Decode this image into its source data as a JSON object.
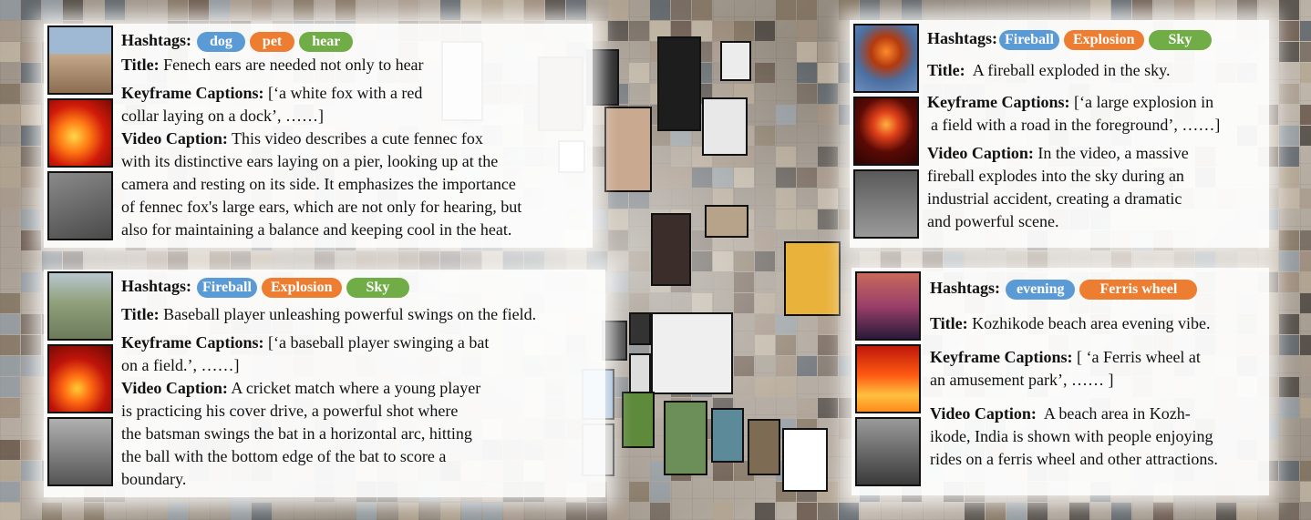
{
  "palette": {
    "tag_blue": "#5b9bd5",
    "tag_orange": "#ed7d31",
    "tag_green": "#70ad47"
  },
  "panels": [
    {
      "hashtags_label": "Hashtags:",
      "hashtags": [
        "dog",
        "pet",
        "hear"
      ],
      "title_label": "Title:",
      "title_text": "Fenech ears are needed not only to hear",
      "keyframe_label": "Keyframe Captions:",
      "keyframe_lines": [
        "[‘a white fox with a red",
        "collar laying on a dock’, ……]"
      ],
      "video_label": "Video Caption:",
      "video_lines": [
        "This video describes a cute fennec fox",
        "with its distinctive ears laying on a pier, looking up at the",
        "camera and resting on its side. It emphasizes the importance",
        "of fennec fox's large ears, which are not only for hearing, but",
        "also for maintaining a balance and keeping cool in the heat."
      ]
    },
    {
      "hashtags_label": "Hashtags:",
      "hashtags": [
        "Fireball",
        "Explosion",
        "Sky"
      ],
      "title_label": "Title:",
      "title_text": "A fireball exploded in the sky.",
      "keyframe_label": "Keyframe Captions:",
      "keyframe_lines": [
        "[‘a large explosion in",
        "a field with a road in the foreground’, ……]"
      ],
      "video_label": "Video Caption:",
      "video_lines": [
        "In the video, a massive",
        "fireball explodes into the sky during an",
        "industrial accident, creating a dramatic",
        "and powerful scene."
      ]
    },
    {
      "hashtags_label": "Hashtags:",
      "hashtags": [
        "Fireball",
        "Explosion",
        "Sky"
      ],
      "title_label": "Title:",
      "title_text": "Baseball player unleashing powerful swings on the field.",
      "keyframe_label": "Keyframe Captions:",
      "keyframe_lines": [
        "[‘a baseball player swinging a bat",
        "on a field.’, ……]"
      ],
      "video_label": "Video Caption:",
      "video_lines": [
        "A cricket match where a young player",
        "is practicing his cover drive, a powerful shot where",
        "the batsman swings the bat in a horizontal arc, hitting",
        "the ball with the bottom edge of the bat to score a",
        "boundary."
      ]
    },
    {
      "hashtags_label": "Hashtags:",
      "hashtags": [
        "evening",
        "Ferris wheel"
      ],
      "title_label": "Title:",
      "title_text": "Kozhikode beach area evening vibe.",
      "keyframe_label": "Keyframe Captions:",
      "keyframe_lines": [
        "[ ‘a Ferris wheel at",
        "an amusement park’,  …… ]"
      ],
      "video_label": "Video Caption:",
      "video_lines": [
        "A beach area in Kozh-",
        "ikode, India is  shown with people enjoying",
        "rides on a ferris wheel and other attractions."
      ]
    }
  ]
}
